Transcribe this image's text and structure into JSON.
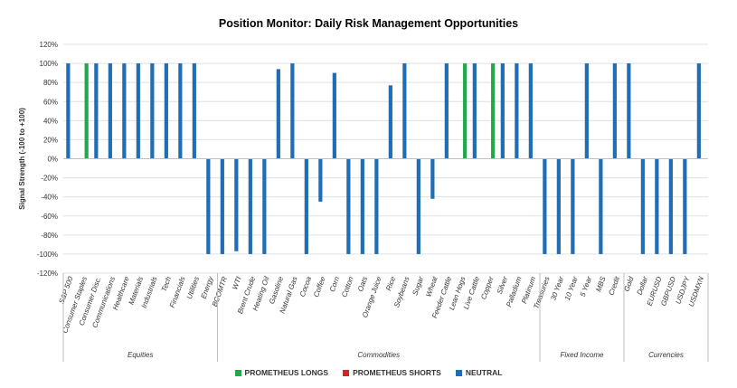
{
  "chart_data": {
    "type": "bar",
    "title": "Position Monitor: Daily Risk Management Opportunities",
    "ylabel": "Signal Strength (-100 to +100)",
    "ylim": [
      -120,
      120
    ],
    "yticks": [
      "120%",
      "100%",
      "80%",
      "60%",
      "40%",
      "20%",
      "0%",
      "-20%",
      "-40%",
      "-60%",
      "-80%",
      "-100%",
      "-120%"
    ],
    "colors": {
      "longs": "#20a84a",
      "shorts": "#e02020",
      "neutral": "#1f6db5"
    },
    "legend": [
      {
        "key": "longs",
        "label": "PROMETHEUS LONGS"
      },
      {
        "key": "shorts",
        "label": "PROMETHEUS SHORTS"
      },
      {
        "key": "neutral",
        "label": "NEUTRAL"
      }
    ],
    "groups": [
      {
        "name": "Equities",
        "categories": [
          {
            "label": "S&P 500",
            "neutral": 100,
            "longs": 0
          },
          {
            "label": "Consumer Staples",
            "neutral": 0,
            "longs": 100
          },
          {
            "label": "Consumer Disc.",
            "neutral": 100,
            "longs": 0
          },
          {
            "label": "Communications",
            "neutral": 100,
            "longs": 0
          },
          {
            "label": "Healthcare",
            "neutral": 100,
            "longs": 0
          },
          {
            "label": "Materials",
            "neutral": 100,
            "longs": 0
          },
          {
            "label": "Industrials",
            "neutral": 100,
            "longs": 0
          },
          {
            "label": "Tech",
            "neutral": 100,
            "longs": 0
          },
          {
            "label": "Financials",
            "neutral": 100,
            "longs": 0
          },
          {
            "label": "Utilities",
            "neutral": 100,
            "longs": 0
          },
          {
            "label": "Energy",
            "neutral": -100,
            "longs": 0
          }
        ]
      },
      {
        "name": "Commodities",
        "categories": [
          {
            "label": "BCOMTR",
            "neutral": -100,
            "longs": 0
          },
          {
            "label": "WTI",
            "neutral": -97,
            "longs": 0
          },
          {
            "label": "Brent Crude",
            "neutral": -100,
            "longs": 0
          },
          {
            "label": "Heating Oil",
            "neutral": -100,
            "longs": 0
          },
          {
            "label": "Gasoline",
            "neutral": 94,
            "longs": 0
          },
          {
            "label": "Natural Gas",
            "neutral": 100,
            "longs": 0
          },
          {
            "label": "Cocoa",
            "neutral": -100,
            "longs": 0
          },
          {
            "label": "Coffee",
            "neutral": -45,
            "longs": 0
          },
          {
            "label": "Corn",
            "neutral": 90,
            "longs": 0
          },
          {
            "label": "Cotton",
            "neutral": -100,
            "longs": 0
          },
          {
            "label": "Oats",
            "neutral": -100,
            "longs": 0
          },
          {
            "label": "Orange Juice",
            "neutral": -100,
            "longs": 0
          },
          {
            "label": "Rice",
            "neutral": 77,
            "longs": 0
          },
          {
            "label": "Soybeans",
            "neutral": 100,
            "longs": 0
          },
          {
            "label": "Sugar",
            "neutral": -100,
            "longs": 0
          },
          {
            "label": "Wheat",
            "neutral": -42,
            "longs": 0
          },
          {
            "label": "Feeder Cattle",
            "neutral": 100,
            "longs": 0
          },
          {
            "label": "Lean Hogs",
            "neutral": 0,
            "longs": 100
          },
          {
            "label": "Live Cattle",
            "neutral": 100,
            "longs": 0
          },
          {
            "label": "Copper",
            "neutral": 0,
            "longs": 100
          },
          {
            "label": "Silver",
            "neutral": 100,
            "longs": 0
          },
          {
            "label": "Palladium",
            "neutral": 100,
            "longs": 0
          },
          {
            "label": "Platinum",
            "neutral": 100,
            "longs": 0
          }
        ]
      },
      {
        "name": "Fixed Income",
        "categories": [
          {
            "label": "Treasuries",
            "neutral": -100,
            "longs": 0
          },
          {
            "label": "30 Year",
            "neutral": -100,
            "longs": 0
          },
          {
            "label": "10 Year",
            "neutral": -100,
            "longs": 0
          },
          {
            "label": "5 Year",
            "neutral": 100,
            "longs": 0
          },
          {
            "label": "MBS",
            "neutral": -100,
            "longs": 0
          },
          {
            "label": "Credit",
            "neutral": 100,
            "longs": 0
          }
        ]
      },
      {
        "name": "Currencies",
        "categories": [
          {
            "label": "Gold",
            "neutral": 100,
            "longs": 0
          },
          {
            "label": "Dollar",
            "neutral": -100,
            "longs": 0
          },
          {
            "label": "EURUSD",
            "neutral": -100,
            "longs": 0
          },
          {
            "label": "GBPUSD",
            "neutral": -100,
            "longs": 0
          },
          {
            "label": "USDJPY",
            "neutral": -100,
            "longs": 0
          },
          {
            "label": "USDMXN",
            "neutral": 100,
            "longs": 0
          }
        ]
      }
    ]
  }
}
